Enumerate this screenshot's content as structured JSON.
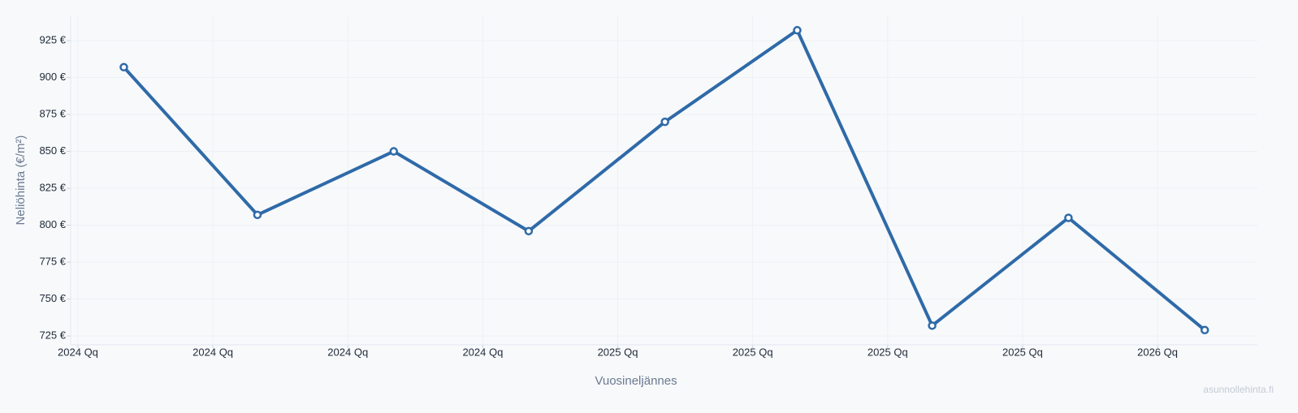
{
  "chart_data": {
    "type": "line",
    "x_label": "Vuosineljännes",
    "y_label": "Neliöhinta (€/m²)",
    "watermark": "asunnollehinta.fi",
    "x": [
      0.34,
      1.33,
      2.34,
      3.34,
      4.35,
      5.33,
      6.33,
      7.34,
      8.35
    ],
    "series": [
      {
        "color": "#2f6aa8",
        "values": [
          907,
          807,
          850,
          796,
          870,
          932,
          732,
          805,
          729
        ]
      }
    ],
    "xlim": [
      -0.054,
      8.74
    ],
    "xticks": [
      {
        "value": 0,
        "label": "2024 Qq"
      },
      {
        "value": 1,
        "label": "2024 Qq"
      },
      {
        "value": 2,
        "label": "2024 Qq"
      },
      {
        "value": 3,
        "label": "2024 Qq"
      },
      {
        "value": 4,
        "label": "2025 Qq"
      },
      {
        "value": 5,
        "label": "2025 Qq"
      },
      {
        "value": 6,
        "label": "2025 Qq"
      },
      {
        "value": 7,
        "label": "2025 Qq"
      },
      {
        "value": 8,
        "label": "2026 Qq"
      }
    ],
    "ylim": [
      719,
      941.5
    ],
    "yticks": [
      {
        "value": 725,
        "label": "725 €"
      },
      {
        "value": 750,
        "label": "750 €"
      },
      {
        "value": 775,
        "label": "775 €"
      },
      {
        "value": 800,
        "label": "800 €"
      },
      {
        "value": 825,
        "label": "825 €"
      },
      {
        "value": 850,
        "label": "850 €"
      },
      {
        "value": 875,
        "label": "875 €"
      },
      {
        "value": 900,
        "label": "900 €"
      },
      {
        "value": 925,
        "label": "925 €"
      }
    ],
    "grid": true
  }
}
